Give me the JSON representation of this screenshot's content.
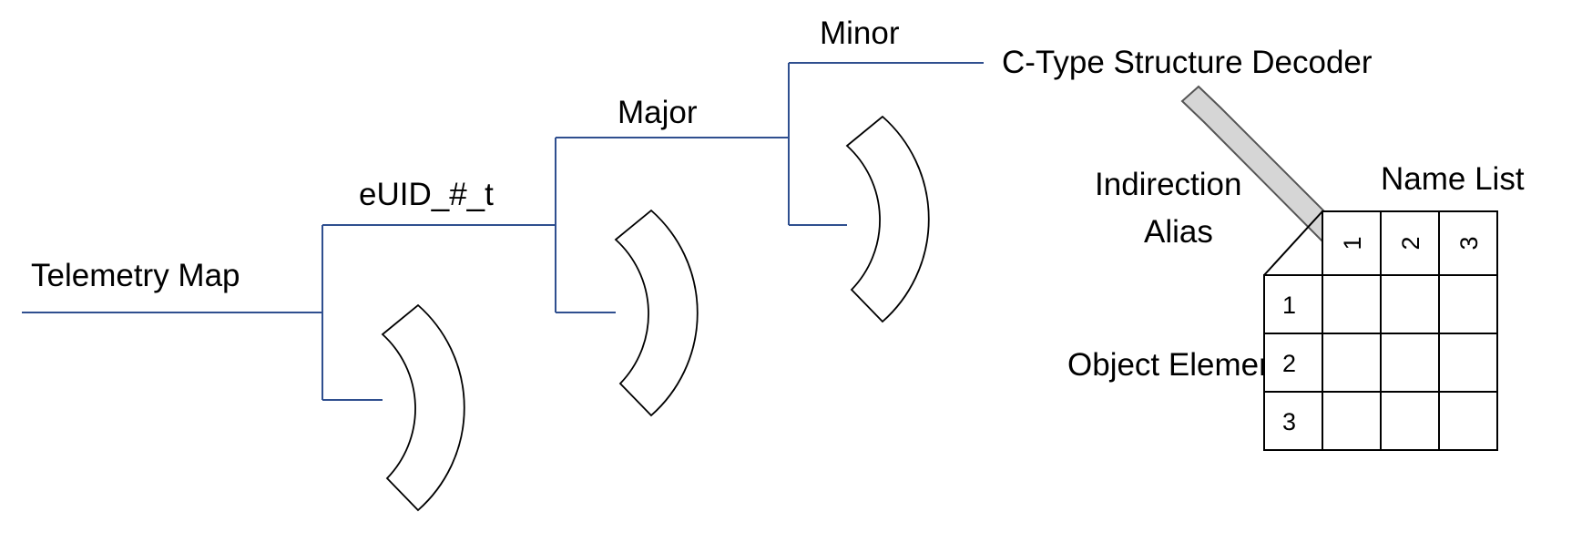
{
  "labels": {
    "telemetry_map": "Telemetry Map",
    "euid": "eUID_#_t",
    "major": "Major",
    "minor": "Minor",
    "decoder": "C-Type Structure Decoder",
    "indirection_line1": "Indirection",
    "indirection_line2": "Alias",
    "name_list": "Name List",
    "object_element": "Object Element"
  },
  "table": {
    "column_headers": [
      "1",
      "2",
      "3"
    ],
    "row_headers": [
      "1",
      "2",
      "3"
    ]
  },
  "colors": {
    "connector_line": "#2F4F8F",
    "arrow_fill": "#d6d6d6"
  }
}
